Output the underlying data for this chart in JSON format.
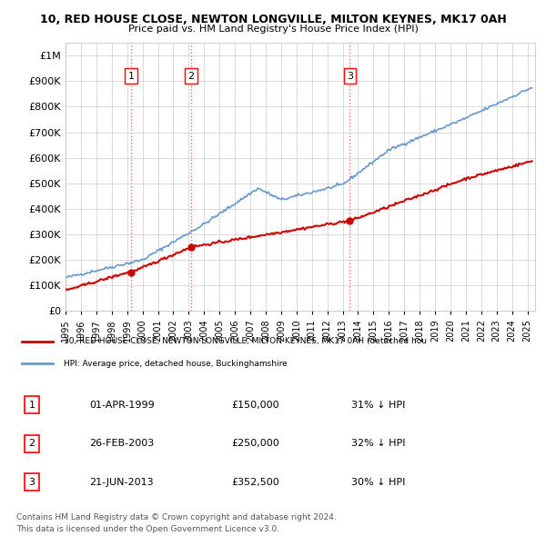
{
  "title1": "10, RED HOUSE CLOSE, NEWTON LONGVILLE, MILTON KEYNES, MK17 0AH",
  "title2": "Price paid vs. HM Land Registry's House Price Index (HPI)",
  "xlim_start": 1995.0,
  "xlim_end": 2025.5,
  "ylim_min": 0,
  "ylim_max": 1050000,
  "yticks": [
    0,
    100000,
    200000,
    300000,
    400000,
    500000,
    600000,
    700000,
    800000,
    900000,
    1000000
  ],
  "ytick_labels": [
    "£0",
    "£100K",
    "£200K",
    "£300K",
    "£400K",
    "£500K",
    "£600K",
    "£700K",
    "£800K",
    "£900K",
    "£1M"
  ],
  "sale_dates": [
    1999.25,
    2003.15,
    2013.47
  ],
  "sale_prices": [
    150000,
    250000,
    352500
  ],
  "sale_labels": [
    "1",
    "2",
    "3"
  ],
  "vline_color": "#ff6666",
  "vline_style": ":",
  "red_line_color": "#cc0000",
  "blue_line_color": "#6699cc",
  "legend_red_label": "10, RED HOUSE CLOSE, NEWTON LONGVILLE, MILTON KEYNES, MK17 0AH (detached hou",
  "legend_blue_label": "HPI: Average price, detached house, Buckinghamshire",
  "table_rows": [
    {
      "num": "1",
      "date": "01-APR-1999",
      "price": "£150,000",
      "hpi": "31% ↓ HPI"
    },
    {
      "num": "2",
      "date": "26-FEB-2003",
      "price": "£250,000",
      "hpi": "32% ↓ HPI"
    },
    {
      "num": "3",
      "date": "21-JUN-2013",
      "price": "£352,500",
      "hpi": "30% ↓ HPI"
    }
  ],
  "footer1": "Contains HM Land Registry data © Crown copyright and database right 2024.",
  "footer2": "This data is licensed under the Open Government Licence v3.0.",
  "background_color": "#ffffff",
  "grid_color": "#cccccc"
}
